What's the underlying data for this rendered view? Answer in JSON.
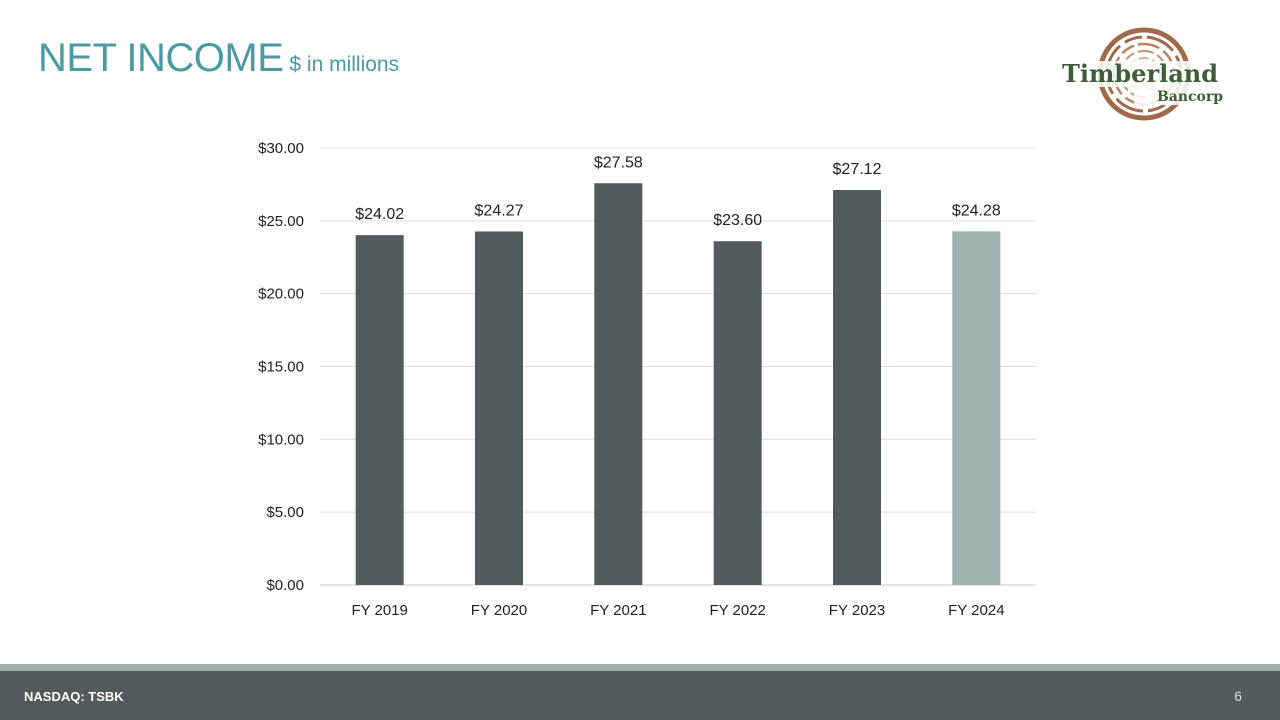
{
  "header": {
    "title": "NET INCOME",
    "subtitle": "$ in millions"
  },
  "logo": {
    "line1": "Timberland",
    "line2": "Bancorp",
    "colors": {
      "ring": "#a0694a",
      "text": "#3d5e36"
    }
  },
  "footer": {
    "ticker": "NASDAQ: TSBK",
    "page_number": "6"
  },
  "chart_data": {
    "type": "bar",
    "categories": [
      "FY 2019",
      "FY 2020",
      "FY 2021",
      "FY 2022",
      "FY 2023",
      "FY 2024"
    ],
    "values": [
      24.02,
      24.27,
      27.58,
      23.6,
      27.12,
      24.28
    ],
    "value_labels": [
      "$24.02",
      "$24.27",
      "$27.58",
      "$23.60",
      "$27.12",
      "$24.28"
    ],
    "ylim": [
      0,
      30
    ],
    "yticks": [
      "$0.00",
      "$5.00",
      "$10.00",
      "$15.00",
      "$20.00",
      "$25.00",
      "$30.00"
    ],
    "ytick_values": [
      0,
      5,
      10,
      15,
      20,
      25,
      30
    ],
    "grid": true,
    "legend": "none",
    "bar_colors": [
      "#525a5c",
      "#525a5c",
      "#525a5c",
      "#525a5c",
      "#525a5c",
      "#9eb3ae"
    ]
  }
}
